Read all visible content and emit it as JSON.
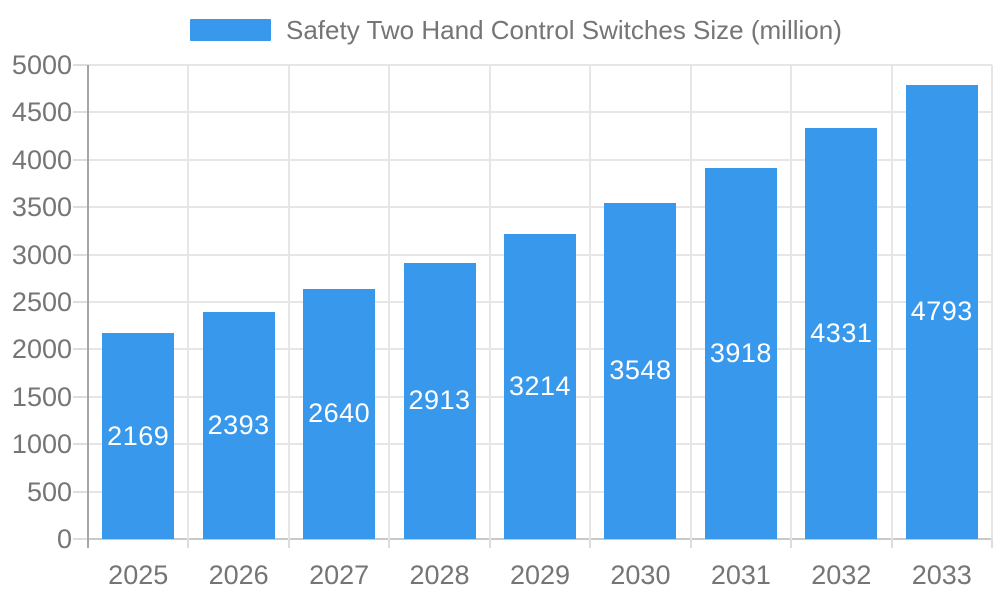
{
  "legend": {
    "label": "Safety Two Hand Control Switches Size (million)"
  },
  "chart_data": {
    "type": "bar",
    "title": "Safety Two Hand Control Switches Size (million)",
    "categories": [
      "2025",
      "2026",
      "2027",
      "2028",
      "2029",
      "2030",
      "2031",
      "2032",
      "2033"
    ],
    "values": [
      2169,
      2393,
      2640,
      2913,
      3214,
      3548,
      3918,
      4331,
      4793
    ],
    "xlabel": "",
    "ylabel": "",
    "ylim": [
      0,
      5000
    ],
    "ytick_step": 500,
    "grid": true,
    "legend_position": "top-center",
    "value_label_position": "inside-center",
    "colors": {
      "bar": "#3898EC",
      "value_label": "#FFFFFF",
      "axis_text": "#757575",
      "legend_text": "#757575",
      "gridline": "#E6E6E6",
      "tick": "#DDDDDD",
      "axis_line": "#A6A6A6",
      "zero_line": "#C9C9C9",
      "background": "#FFFFFF"
    }
  }
}
